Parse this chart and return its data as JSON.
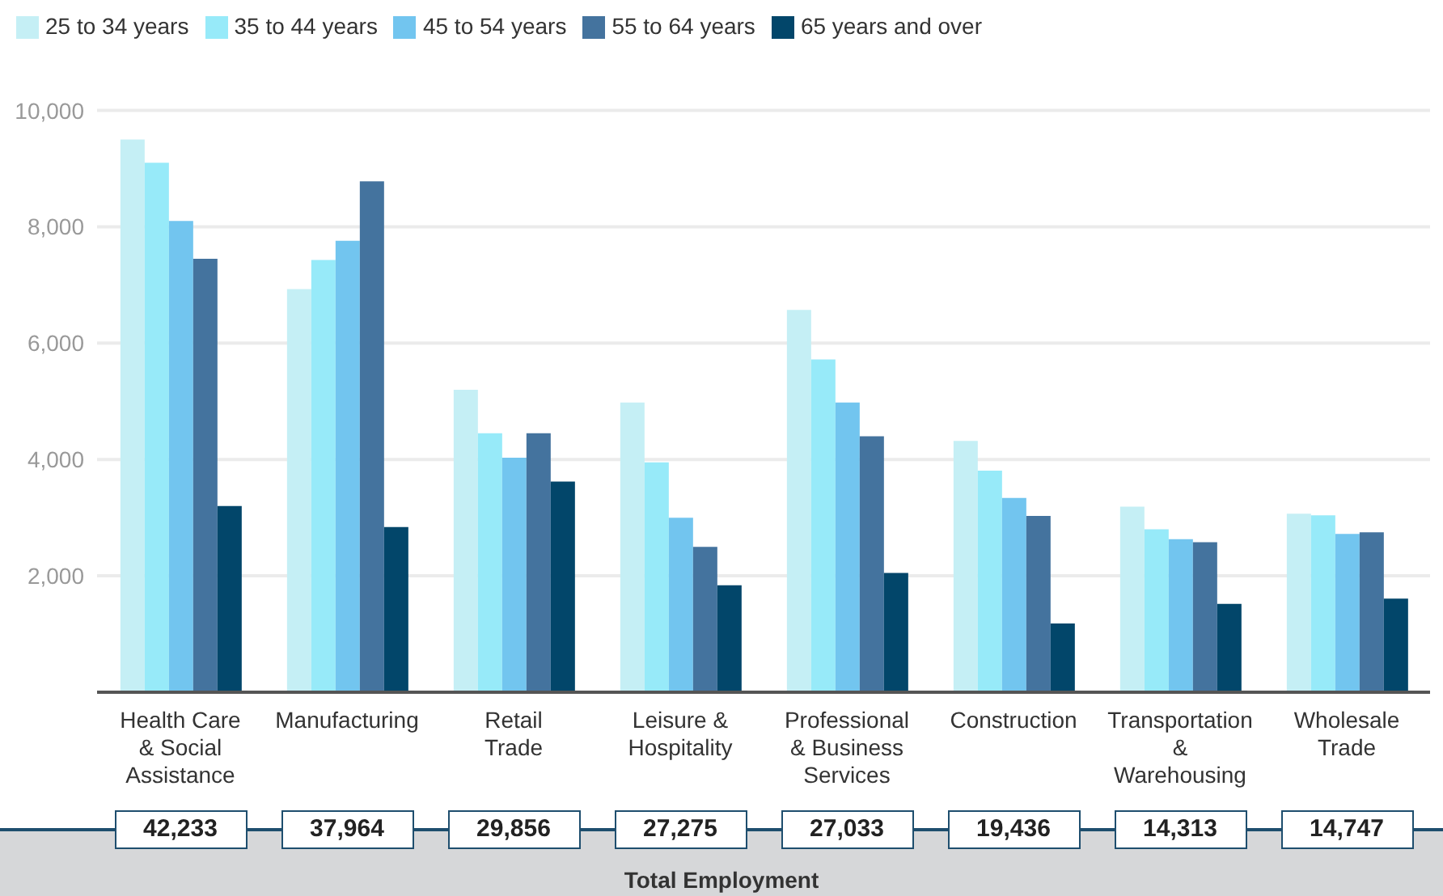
{
  "chart_data": {
    "type": "bar",
    "categories": [
      "Health Care & Social Assistance",
      "Manufacturing",
      "Retail Trade",
      "Leisure & Hospitality",
      "Professional & Business Services",
      "Construction",
      "Transportation & Warehousing",
      "Wholesale Trade"
    ],
    "series": [
      {
        "name": "25 to 34 years",
        "color": "#c5eff5",
        "values": [
          9500,
          6930,
          5200,
          4980,
          6570,
          4320,
          3190,
          3070
        ]
      },
      {
        "name": "35 to 44 years",
        "color": "#97eaf9",
        "values": [
          9100,
          7430,
          4450,
          3950,
          5720,
          3810,
          2800,
          3040
        ]
      },
      {
        "name": "45 to 54 years",
        "color": "#72c5ef",
        "values": [
          8100,
          7760,
          4030,
          3000,
          4980,
          3340,
          2630,
          2720
        ]
      },
      {
        "name": "55 to 64 years",
        "color": "#44739e",
        "values": [
          7450,
          8780,
          4450,
          2500,
          4400,
          3030,
          2580,
          2750
        ]
      },
      {
        "name": "65 years and over",
        "color": "#02466a",
        "values": [
          3200,
          2840,
          3620,
          1840,
          2050,
          1180,
          1520,
          1610
        ]
      }
    ],
    "ylim": [
      0,
      10000
    ],
    "yticks": [
      {
        "value": 2000,
        "label": "2,000"
      },
      {
        "value": 4000,
        "label": "4,000"
      },
      {
        "value": 6000,
        "label": "6,000"
      },
      {
        "value": 8000,
        "label": "8,000"
      },
      {
        "value": 10000,
        "label": "10,000"
      }
    ],
    "grid": "y",
    "legend": "top left",
    "annotations": [
      "Total Employment",
      "42,233",
      "37,964",
      "29,856",
      "27,275",
      "27,033",
      "19,436",
      "14,313",
      "14,747"
    ]
  }
}
